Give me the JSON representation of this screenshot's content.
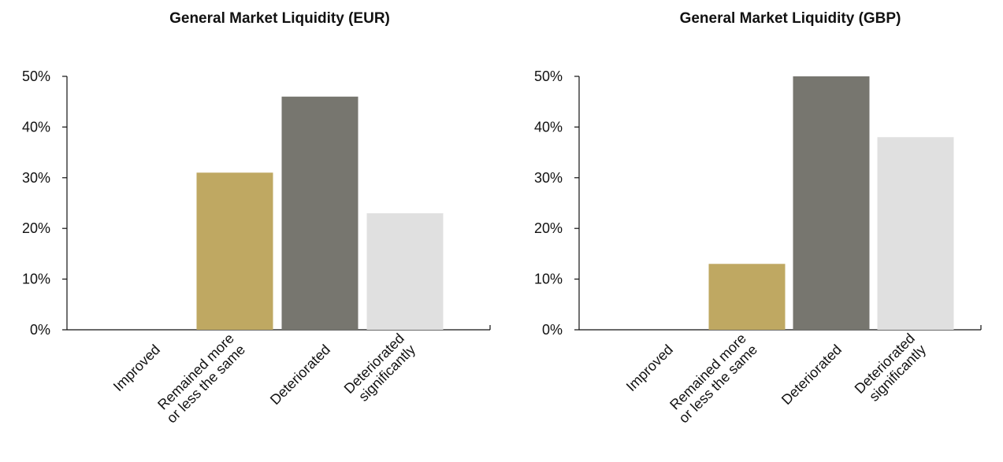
{
  "chart_data": [
    {
      "type": "bar",
      "title": "General Market Liquidity (EUR)",
      "categories": [
        "Improved",
        "Remained more\nor less the same",
        "Deteriorated",
        "Deteriorated\nsignificantly"
      ],
      "values": [
        0,
        31,
        46,
        23
      ],
      "colors": [
        null,
        "#bfa862",
        "#77766f",
        "#e0e0e0"
      ],
      "ylim": [
        0,
        50
      ],
      "yticks": [
        {
          "value": 0,
          "label": "0%"
        },
        {
          "value": 10,
          "label": "10%"
        },
        {
          "value": 20,
          "label": "20%"
        },
        {
          "value": 30,
          "label": "30%"
        },
        {
          "value": 40,
          "label": "40%"
        },
        {
          "value": 50,
          "label": "50%"
        }
      ]
    },
    {
      "type": "bar",
      "title": "General Market Liquidity (GBP)",
      "categories": [
        "Improved",
        "Remained more\nor less the same",
        "Deteriorated",
        "Deteriorated\nsignificantly"
      ],
      "values": [
        0,
        13,
        50,
        38
      ],
      "colors": [
        null,
        "#bfa862",
        "#77766f",
        "#e0e0e0"
      ],
      "ylim": [
        0,
        50
      ],
      "yticks": [
        {
          "value": 0,
          "label": "0%"
        },
        {
          "value": 10,
          "label": "10%"
        },
        {
          "value": 20,
          "label": "20%"
        },
        {
          "value": 30,
          "label": "30%"
        },
        {
          "value": 40,
          "label": "40%"
        },
        {
          "value": 50,
          "label": "50%"
        }
      ]
    }
  ]
}
